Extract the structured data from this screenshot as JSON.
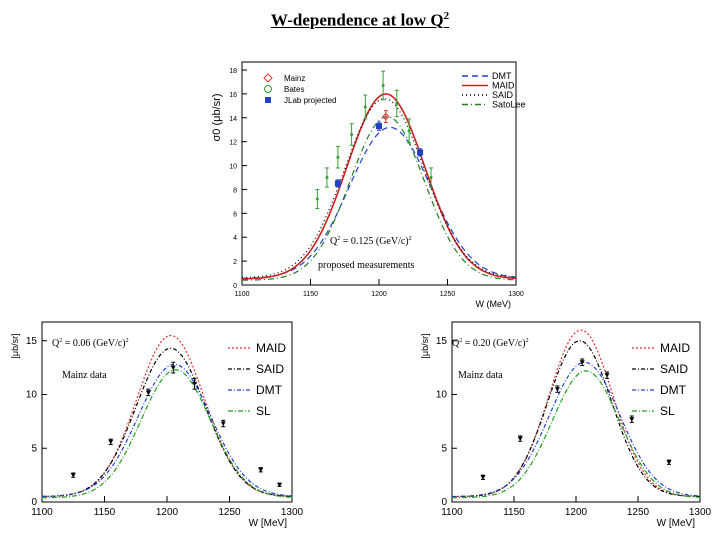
{
  "slide_title": {
    "text": "W-dependence at low Q",
    "superscript": "2"
  },
  "chart_data": [
    {
      "type": "line",
      "id": "top",
      "ylabel": "σ0 (μb/sr)",
      "xlabel": "W (MeV)",
      "xlim": [
        1100,
        1300
      ],
      "ylim": [
        0,
        18
      ],
      "x_ticks": [
        "1100",
        "1150",
        "1200",
        "1250",
        "1300"
      ],
      "y_ticks": [
        "0",
        "2",
        "4",
        "6",
        "8",
        "10",
        "12",
        "14",
        "16",
        "18"
      ],
      "annotation_q2": {
        "prefix": "Q",
        "sup": "2",
        "suffix": " = 0.125 (GeV/c)",
        "sup2": "2"
      },
      "annotation_sub": "proposed measurements",
      "legend_data": [
        {
          "label": "Mainz",
          "marker": "diamond",
          "color": "#e03030"
        },
        {
          "label": "Bates",
          "marker": "circle",
          "color": "#30a030"
        },
        {
          "label": "JLab projected",
          "marker": "square",
          "color": "#2040c0"
        }
      ],
      "series": [
        {
          "name": "DMT",
          "color": "#2040d0",
          "dash": "6,4",
          "peak": 13.2,
          "peakW": 1208,
          "width": 46,
          "base": 0.55
        },
        {
          "name": "MAID",
          "color": "#d02020",
          "dash": "",
          "peak": 16.0,
          "peakW": 1205,
          "width": 44,
          "base": 0.5
        },
        {
          "name": "SAID",
          "color": "#000000",
          "dash": "1,3",
          "peak": 15.6,
          "peakW": 1204,
          "width": 45,
          "base": 0.6
        },
        {
          "name": "SatoLee",
          "color": "#208020",
          "dash": "6,3,1,3",
          "peak": 14.1,
          "peakW": 1206,
          "width": 42,
          "base": 0.4
        }
      ],
      "points": [
        {
          "set": "Bates",
          "x": 1155,
          "y": 7.2,
          "err": 0.8
        },
        {
          "set": "Bates",
          "x": 1162,
          "y": 9.0,
          "err": 0.8
        },
        {
          "set": "Bates",
          "x": 1170,
          "y": 10.7,
          "err": 0.9
        },
        {
          "set": "Bates",
          "x": 1180,
          "y": 12.6,
          "err": 0.9
        },
        {
          "set": "Bates",
          "x": 1190,
          "y": 14.9,
          "err": 1.0
        },
        {
          "set": "Bates",
          "x": 1203,
          "y": 16.7,
          "err": 1.2
        },
        {
          "set": "Bates",
          "x": 1213,
          "y": 15.2,
          "err": 1.1
        },
        {
          "set": "Bates",
          "x": 1222,
          "y": 12.9,
          "err": 1.0
        },
        {
          "set": "Bates",
          "x": 1238,
          "y": 9.0,
          "err": 0.8
        },
        {
          "set": "Mainz",
          "x": 1205,
          "y": 14.1,
          "err": 0.5
        },
        {
          "set": "JLab projected",
          "x": 1170,
          "y": 8.5,
          "err": 0.3
        },
        {
          "set": "JLab projected",
          "x": 1200,
          "y": 13.3,
          "err": 0.35
        },
        {
          "set": "JLab projected",
          "x": 1230,
          "y": 11.1,
          "err": 0.3
        }
      ]
    },
    {
      "type": "line",
      "id": "bl",
      "ylabel": "[μb/sr]",
      "xlabel": "W [MeV]",
      "xlim": [
        1100,
        1300
      ],
      "ylim": [
        0,
        16
      ],
      "x_ticks": [
        "1100",
        "1150",
        "1200",
        "1250",
        "1300"
      ],
      "y_ticks": [
        "0",
        "5",
        "10",
        "15"
      ],
      "annotation_q2": {
        "prefix": "Q",
        "sup": "2",
        "suffix": " = 0.06 (GeV/c)",
        "sup2": "2"
      },
      "annotation_sub": "Mainz data",
      "series": [
        {
          "name": "MAID",
          "color": "#e03030",
          "dash": "2,2",
          "peak": 15.5,
          "peakW": 1203,
          "width": 42,
          "base": 0.5
        },
        {
          "name": "SAID",
          "color": "#000000",
          "dash": "4,2,1,2",
          "peak": 14.3,
          "peakW": 1203,
          "width": 43,
          "base": 0.5
        },
        {
          "name": "DMT",
          "color": "#2040d0",
          "dash": "4,2,1,2",
          "peak": 12.8,
          "peakW": 1206,
          "width": 45,
          "base": 0.5
        },
        {
          "name": "SL",
          "color": "#20a020",
          "dash": "5,2,1,2",
          "peak": 12.3,
          "peakW": 1207,
          "width": 43,
          "base": 0.4
        }
      ],
      "points": [
        {
          "set": "Mainz",
          "x": 1125,
          "y": 2.5,
          "err": 0.2
        },
        {
          "set": "Mainz",
          "x": 1155,
          "y": 5.6,
          "err": 0.25
        },
        {
          "set": "Mainz",
          "x": 1185,
          "y": 10.2,
          "err": 0.3
        },
        {
          "set": "Mainz",
          "x": 1205,
          "y": 12.5,
          "err": 0.5
        },
        {
          "set": "Mainz",
          "x": 1222,
          "y": 11.0,
          "err": 0.5
        },
        {
          "set": "Mainz",
          "x": 1245,
          "y": 7.3,
          "err": 0.3
        },
        {
          "set": "Mainz",
          "x": 1275,
          "y": 3.0,
          "err": 0.2
        },
        {
          "set": "Mainz",
          "x": 1290,
          "y": 1.6,
          "err": 0.15
        }
      ]
    },
    {
      "type": "line",
      "id": "br",
      "ylabel": "[μb/sr]",
      "xlabel": "W [MeV]",
      "xlim": [
        1100,
        1300
      ],
      "ylim": [
        0,
        16
      ],
      "x_ticks": [
        "1100",
        "1150",
        "1200",
        "1250",
        "1300"
      ],
      "y_ticks": [
        "0",
        "5",
        "10",
        "15"
      ],
      "annotation_q2": {
        "prefix": "Q",
        "sup": "2",
        "suffix": " = 0.20 (GeV/c)",
        "sup2": "2"
      },
      "annotation_sub": "Mainz data",
      "series": [
        {
          "name": "MAID",
          "color": "#e03030",
          "dash": "2,2",
          "peak": 16.0,
          "peakW": 1204,
          "width": 40,
          "base": 0.5
        },
        {
          "name": "SAID",
          "color": "#000000",
          "dash": "4,2,1,2",
          "peak": 15.0,
          "peakW": 1203,
          "width": 40,
          "base": 0.5
        },
        {
          "name": "DMT",
          "color": "#2040d0",
          "dash": "4,2,1,2",
          "peak": 13.0,
          "peakW": 1207,
          "width": 44,
          "base": 0.5
        },
        {
          "name": "SL",
          "color": "#20a020",
          "dash": "5,2,1,2",
          "peak": 12.2,
          "peakW": 1208,
          "width": 42,
          "base": 0.4
        }
      ],
      "points": [
        {
          "set": "Mainz",
          "x": 1125,
          "y": 2.3,
          "err": 0.2
        },
        {
          "set": "Mainz",
          "x": 1155,
          "y": 5.9,
          "err": 0.25
        },
        {
          "set": "Mainz",
          "x": 1185,
          "y": 10.5,
          "err": 0.3
        },
        {
          "set": "Mainz",
          "x": 1205,
          "y": 13.0,
          "err": 0.3
        },
        {
          "set": "Mainz",
          "x": 1225,
          "y": 11.8,
          "err": 0.3
        },
        {
          "set": "Mainz",
          "x": 1245,
          "y": 7.7,
          "err": 0.3
        },
        {
          "set": "Mainz",
          "x": 1275,
          "y": 3.7,
          "err": 0.2
        }
      ]
    }
  ]
}
